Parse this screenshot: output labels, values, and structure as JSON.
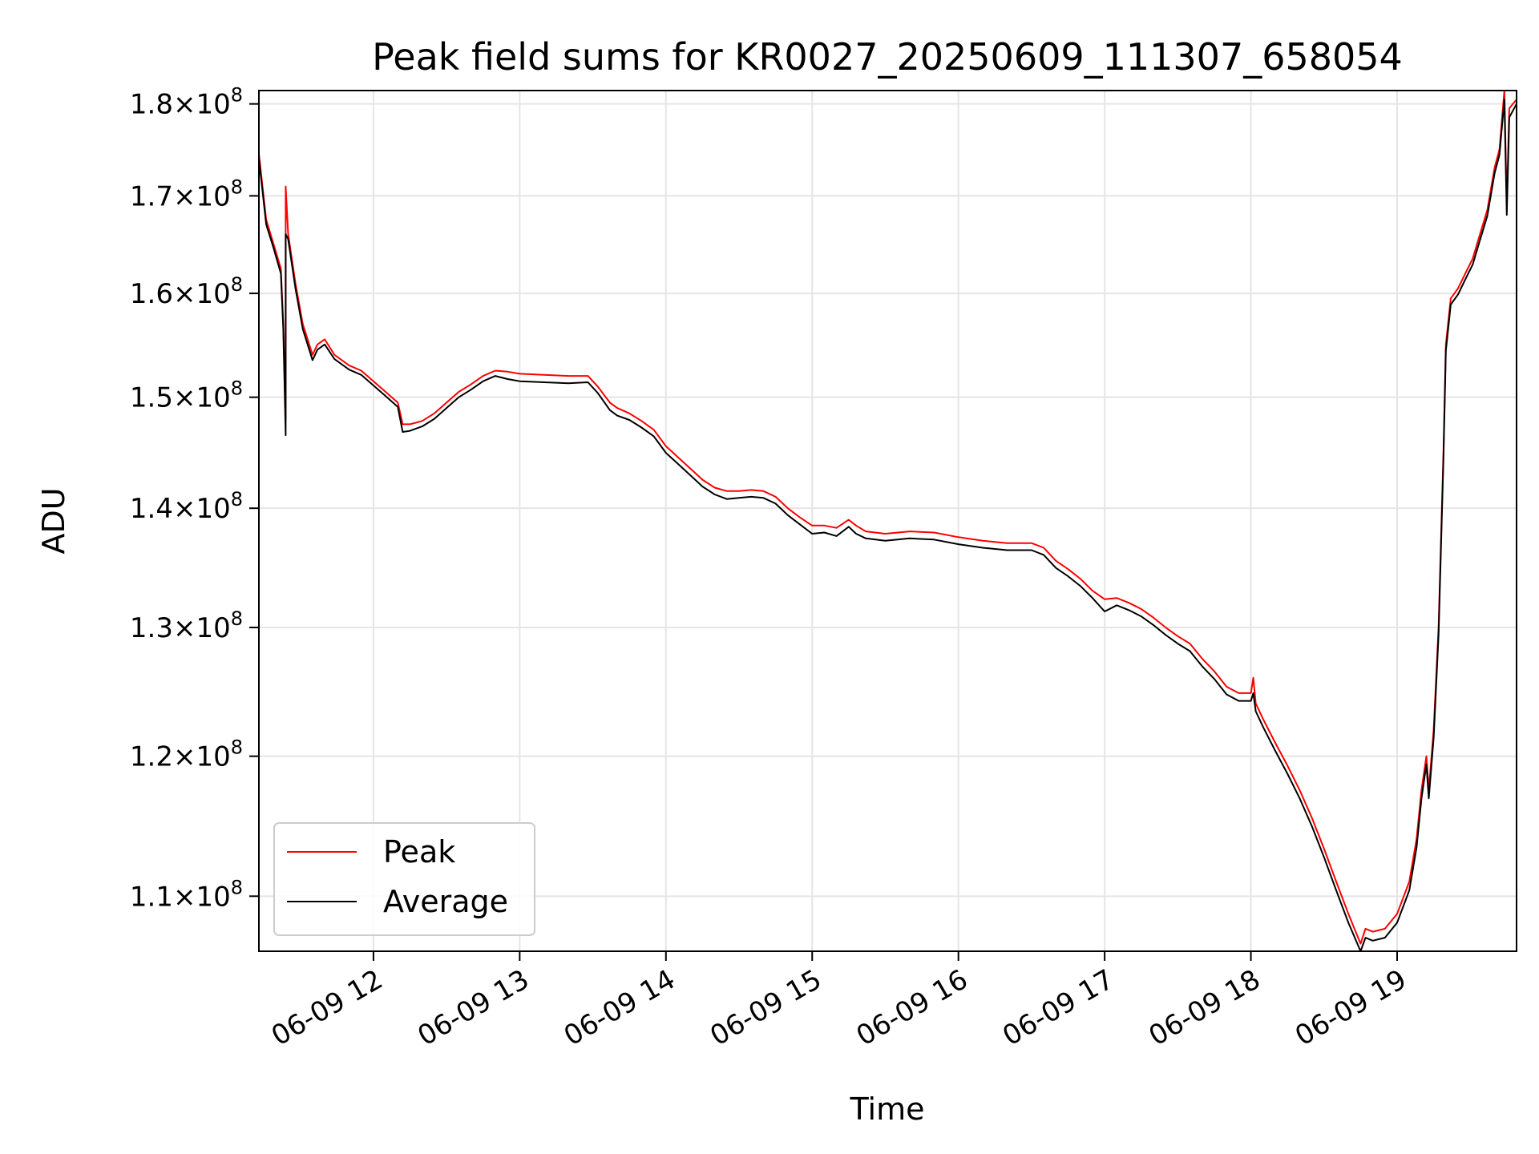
{
  "chart_data": {
    "type": "line",
    "title": "Peak field sums for KR0027_20250609_111307_658054",
    "xlabel": "Time",
    "ylabel": "ADU",
    "y_scale": "log",
    "grid": true,
    "legend_position": "lower-left",
    "xlim": [
      "2025-06-09 11:13",
      "2025-06-09 19:49"
    ],
    "ylim": [
      106300000,
      181500000
    ],
    "x_ticks": [
      {
        "t": "2025-06-09 12:00",
        "label": "06-09 12"
      },
      {
        "t": "2025-06-09 13:00",
        "label": "06-09 13"
      },
      {
        "t": "2025-06-09 14:00",
        "label": "06-09 14"
      },
      {
        "t": "2025-06-09 15:00",
        "label": "06-09 15"
      },
      {
        "t": "2025-06-09 16:00",
        "label": "06-09 16"
      },
      {
        "t": "2025-06-09 17:00",
        "label": "06-09 17"
      },
      {
        "t": "2025-06-09 18:00",
        "label": "06-09 18"
      },
      {
        "t": "2025-06-09 19:00",
        "label": "06-09 19"
      }
    ],
    "y_ticks": [
      {
        "v": 110000000,
        "mant": "1.1",
        "exp": "8"
      },
      {
        "v": 120000000,
        "mant": "1.2",
        "exp": "8"
      },
      {
        "v": 130000000,
        "mant": "1.3",
        "exp": "8"
      },
      {
        "v": 140000000,
        "mant": "1.4",
        "exp": "8"
      },
      {
        "v": 150000000,
        "mant": "1.5",
        "exp": "8"
      },
      {
        "v": 160000000,
        "mant": "1.6",
        "exp": "8"
      },
      {
        "v": 170000000,
        "mant": "1.7",
        "exp": "8"
      },
      {
        "v": 180000000,
        "mant": "1.8",
        "exp": "8"
      }
    ],
    "series": [
      {
        "name": "Peak",
        "color": "#ff0000",
        "points": [
          [
            "2025-06-09 11:13",
            174.5
          ],
          [
            "2025-06-09 11:16",
            167.5
          ],
          [
            "2025-06-09 11:19",
            165.0
          ],
          [
            "2025-06-09 11:22",
            162.5
          ],
          [
            "2025-06-09 11:23",
            157.0
          ],
          [
            "2025-06-09 11:24",
            148.0
          ],
          [
            "2025-06-09 11:24",
            171.0
          ],
          [
            "2025-06-09 11:25",
            166.0
          ],
          [
            "2025-06-09 11:28",
            161.0
          ],
          [
            "2025-06-09 11:31",
            157.0
          ],
          [
            "2025-06-09 11:35",
            154.0
          ],
          [
            "2025-06-09 11:37",
            155.0
          ],
          [
            "2025-06-09 11:40",
            155.5
          ],
          [
            "2025-06-09 11:44",
            154.0
          ],
          [
            "2025-06-09 11:50",
            153.0
          ],
          [
            "2025-06-09 11:55",
            152.5
          ],
          [
            "2025-06-09 12:00",
            151.5
          ],
          [
            "2025-06-09 12:05",
            150.5
          ],
          [
            "2025-06-09 12:10",
            149.5
          ],
          [
            "2025-06-09 12:12",
            147.5
          ],
          [
            "2025-06-09 12:15",
            147.5
          ],
          [
            "2025-06-09 12:20",
            147.8
          ],
          [
            "2025-06-09 12:25",
            148.5
          ],
          [
            "2025-06-09 12:30",
            149.5
          ],
          [
            "2025-06-09 12:35",
            150.5
          ],
          [
            "2025-06-09 12:40",
            151.2
          ],
          [
            "2025-06-09 12:45",
            152.0
          ],
          [
            "2025-06-09 12:50",
            152.5
          ],
          [
            "2025-06-09 12:55",
            152.4
          ],
          [
            "2025-06-09 13:00",
            152.2
          ],
          [
            "2025-06-09 13:10",
            152.1
          ],
          [
            "2025-06-09 13:20",
            152.0
          ],
          [
            "2025-06-09 13:28",
            152.0
          ],
          [
            "2025-06-09 13:32",
            151.0
          ],
          [
            "2025-06-09 13:37",
            149.5
          ],
          [
            "2025-06-09 13:40",
            149.0
          ],
          [
            "2025-06-09 13:45",
            148.5
          ],
          [
            "2025-06-09 13:50",
            147.8
          ],
          [
            "2025-06-09 13:55",
            147.0
          ],
          [
            "2025-06-09 14:00",
            145.5
          ],
          [
            "2025-06-09 14:05",
            144.5
          ],
          [
            "2025-06-09 14:10",
            143.5
          ],
          [
            "2025-06-09 14:15",
            142.5
          ],
          [
            "2025-06-09 14:20",
            141.8
          ],
          [
            "2025-06-09 14:25",
            141.5
          ],
          [
            "2025-06-09 14:30",
            141.5
          ],
          [
            "2025-06-09 14:35",
            141.6
          ],
          [
            "2025-06-09 14:40",
            141.5
          ],
          [
            "2025-06-09 14:45",
            141.0
          ],
          [
            "2025-06-09 14:50",
            140.0
          ],
          [
            "2025-06-09 14:55",
            139.2
          ],
          [
            "2025-06-09 15:00",
            138.5
          ],
          [
            "2025-06-09 15:05",
            138.5
          ],
          [
            "2025-06-09 15:10",
            138.3
          ],
          [
            "2025-06-09 15:15",
            139.0
          ],
          [
            "2025-06-09 15:18",
            138.5
          ],
          [
            "2025-06-09 15:22",
            138.0
          ],
          [
            "2025-06-09 15:30",
            137.8
          ],
          [
            "2025-06-09 15:40",
            138.0
          ],
          [
            "2025-06-09 15:50",
            137.9
          ],
          [
            "2025-06-09 16:00",
            137.5
          ],
          [
            "2025-06-09 16:10",
            137.2
          ],
          [
            "2025-06-09 16:20",
            137.0
          ],
          [
            "2025-06-09 16:30",
            137.0
          ],
          [
            "2025-06-09 16:35",
            136.6
          ],
          [
            "2025-06-09 16:40",
            135.5
          ],
          [
            "2025-06-09 16:45",
            134.8
          ],
          [
            "2025-06-09 16:50",
            134.0
          ],
          [
            "2025-06-09 16:55",
            133.0
          ],
          [
            "2025-06-09 17:00",
            132.3
          ],
          [
            "2025-06-09 17:05",
            132.4
          ],
          [
            "2025-06-09 17:10",
            132.0
          ],
          [
            "2025-06-09 17:15",
            131.5
          ],
          [
            "2025-06-09 17:20",
            130.8
          ],
          [
            "2025-06-09 17:25",
            130.0
          ],
          [
            "2025-06-09 17:30",
            129.3
          ],
          [
            "2025-06-09 17:35",
            128.7
          ],
          [
            "2025-06-09 17:40",
            127.5
          ],
          [
            "2025-06-09 17:45",
            126.5
          ],
          [
            "2025-06-09 17:50",
            125.3
          ],
          [
            "2025-06-09 17:55",
            124.8
          ],
          [
            "2025-06-09 18:00",
            124.8
          ],
          [
            "2025-06-09 18:01",
            126.0
          ],
          [
            "2025-06-09 18:02",
            124.0
          ],
          [
            "2025-06-09 18:05",
            122.8
          ],
          [
            "2025-06-09 18:10",
            121.0
          ],
          [
            "2025-06-09 18:15",
            119.3
          ],
          [
            "2025-06-09 18:20",
            117.5
          ],
          [
            "2025-06-09 18:25",
            115.5
          ],
          [
            "2025-06-09 18:30",
            113.3
          ],
          [
            "2025-06-09 18:35",
            111.0
          ],
          [
            "2025-06-09 18:40",
            108.8
          ],
          [
            "2025-06-09 18:45",
            106.8
          ],
          [
            "2025-06-09 18:47",
            107.8
          ],
          [
            "2025-06-09 18:50",
            107.6
          ],
          [
            "2025-06-09 18:55",
            107.8
          ],
          [
            "2025-06-09 19:00",
            108.8
          ],
          [
            "2025-06-09 19:05",
            111.0
          ],
          [
            "2025-06-09 19:08",
            114.0
          ],
          [
            "2025-06-09 19:10",
            117.5
          ],
          [
            "2025-06-09 19:12",
            120.0
          ],
          [
            "2025-06-09 19:13",
            117.5
          ],
          [
            "2025-06-09 19:15",
            122.0
          ],
          [
            "2025-06-09 19:17",
            130.0
          ],
          [
            "2025-06-09 19:19",
            145.0
          ],
          [
            "2025-06-09 19:20",
            155.0
          ],
          [
            "2025-06-09 19:22",
            159.5
          ],
          [
            "2025-06-09 19:25",
            160.5
          ],
          [
            "2025-06-09 19:28",
            162.0
          ],
          [
            "2025-06-09 19:31",
            163.5
          ],
          [
            "2025-06-09 19:34",
            166.0
          ],
          [
            "2025-06-09 19:37",
            168.5
          ],
          [
            "2025-06-09 19:40",
            173.0
          ],
          [
            "2025-06-09 19:42",
            175.0
          ],
          [
            "2025-06-09 19:44",
            181.5
          ],
          [
            "2025-06-09 19:45",
            169.0
          ],
          [
            "2025-06-09 19:46",
            179.5
          ],
          [
            "2025-06-09 19:49",
            180.5
          ]
        ]
      },
      {
        "name": "Average",
        "color": "#000000",
        "points": [
          [
            "2025-06-09 11:13",
            174.0
          ],
          [
            "2025-06-09 11:16",
            167.0
          ],
          [
            "2025-06-09 11:19",
            164.6
          ],
          [
            "2025-06-09 11:22",
            162.0
          ],
          [
            "2025-06-09 11:23",
            156.5
          ],
          [
            "2025-06-09 11:24",
            146.5
          ],
          [
            "2025-06-09 11:24",
            166.0
          ],
          [
            "2025-06-09 11:25",
            165.5
          ],
          [
            "2025-06-09 11:28",
            160.5
          ],
          [
            "2025-06-09 11:31",
            156.5
          ],
          [
            "2025-06-09 11:35",
            153.5
          ],
          [
            "2025-06-09 11:37",
            154.5
          ],
          [
            "2025-06-09 11:40",
            155.0
          ],
          [
            "2025-06-09 11:44",
            153.6
          ],
          [
            "2025-06-09 11:50",
            152.6
          ],
          [
            "2025-06-09 11:55",
            152.1
          ],
          [
            "2025-06-09 12:00",
            151.1
          ],
          [
            "2025-06-09 12:05",
            150.1
          ],
          [
            "2025-06-09 12:10",
            149.1
          ],
          [
            "2025-06-09 12:12",
            146.8
          ],
          [
            "2025-06-09 12:15",
            146.9
          ],
          [
            "2025-06-09 12:20",
            147.3
          ],
          [
            "2025-06-09 12:25",
            148.0
          ],
          [
            "2025-06-09 12:30",
            149.0
          ],
          [
            "2025-06-09 12:35",
            150.0
          ],
          [
            "2025-06-09 12:40",
            150.7
          ],
          [
            "2025-06-09 12:45",
            151.5
          ],
          [
            "2025-06-09 12:50",
            152.0
          ],
          [
            "2025-06-09 12:55",
            151.7
          ],
          [
            "2025-06-09 13:00",
            151.5
          ],
          [
            "2025-06-09 13:10",
            151.4
          ],
          [
            "2025-06-09 13:20",
            151.3
          ],
          [
            "2025-06-09 13:28",
            151.4
          ],
          [
            "2025-06-09 13:32",
            150.4
          ],
          [
            "2025-06-09 13:37",
            148.8
          ],
          [
            "2025-06-09 13:40",
            148.3
          ],
          [
            "2025-06-09 13:45",
            147.9
          ],
          [
            "2025-06-09 13:50",
            147.2
          ],
          [
            "2025-06-09 13:55",
            146.4
          ],
          [
            "2025-06-09 14:00",
            144.9
          ],
          [
            "2025-06-09 14:05",
            143.9
          ],
          [
            "2025-06-09 14:10",
            142.9
          ],
          [
            "2025-06-09 14:15",
            141.9
          ],
          [
            "2025-06-09 14:20",
            141.2
          ],
          [
            "2025-06-09 14:25",
            140.8
          ],
          [
            "2025-06-09 14:30",
            140.9
          ],
          [
            "2025-06-09 14:35",
            141.0
          ],
          [
            "2025-06-09 14:40",
            140.9
          ],
          [
            "2025-06-09 14:45",
            140.4
          ],
          [
            "2025-06-09 14:50",
            139.4
          ],
          [
            "2025-06-09 14:55",
            138.6
          ],
          [
            "2025-06-09 15:00",
            137.8
          ],
          [
            "2025-06-09 15:05",
            137.9
          ],
          [
            "2025-06-09 15:10",
            137.6
          ],
          [
            "2025-06-09 15:15",
            138.4
          ],
          [
            "2025-06-09 15:18",
            137.8
          ],
          [
            "2025-06-09 15:22",
            137.4
          ],
          [
            "2025-06-09 15:30",
            137.2
          ],
          [
            "2025-06-09 15:40",
            137.4
          ],
          [
            "2025-06-09 15:50",
            137.3
          ],
          [
            "2025-06-09 16:00",
            136.9
          ],
          [
            "2025-06-09 16:10",
            136.6
          ],
          [
            "2025-06-09 16:20",
            136.4
          ],
          [
            "2025-06-09 16:30",
            136.4
          ],
          [
            "2025-06-09 16:35",
            136.0
          ],
          [
            "2025-06-09 16:40",
            134.9
          ],
          [
            "2025-06-09 16:45",
            134.2
          ],
          [
            "2025-06-09 16:50",
            133.4
          ],
          [
            "2025-06-09 16:55",
            132.4
          ],
          [
            "2025-06-09 17:00",
            131.3
          ],
          [
            "2025-06-09 17:05",
            131.8
          ],
          [
            "2025-06-09 17:10",
            131.4
          ],
          [
            "2025-06-09 17:15",
            130.9
          ],
          [
            "2025-06-09 17:20",
            130.2
          ],
          [
            "2025-06-09 17:25",
            129.4
          ],
          [
            "2025-06-09 17:30",
            128.7
          ],
          [
            "2025-06-09 17:35",
            128.1
          ],
          [
            "2025-06-09 17:40",
            126.9
          ],
          [
            "2025-06-09 17:45",
            125.9
          ],
          [
            "2025-06-09 17:50",
            124.7
          ],
          [
            "2025-06-09 17:55",
            124.2
          ],
          [
            "2025-06-09 18:00",
            124.2
          ],
          [
            "2025-06-09 18:01",
            124.8
          ],
          [
            "2025-06-09 18:02",
            123.4
          ],
          [
            "2025-06-09 18:05",
            122.2
          ],
          [
            "2025-06-09 18:10",
            120.4
          ],
          [
            "2025-06-09 18:15",
            118.7
          ],
          [
            "2025-06-09 18:20",
            116.9
          ],
          [
            "2025-06-09 18:25",
            114.9
          ],
          [
            "2025-06-09 18:30",
            112.7
          ],
          [
            "2025-06-09 18:35",
            110.4
          ],
          [
            "2025-06-09 18:40",
            108.2
          ],
          [
            "2025-06-09 18:45",
            106.3
          ],
          [
            "2025-06-09 18:47",
            107.2
          ],
          [
            "2025-06-09 18:50",
            107.0
          ],
          [
            "2025-06-09 18:55",
            107.2
          ],
          [
            "2025-06-09 19:00",
            108.2
          ],
          [
            "2025-06-09 19:05",
            110.4
          ],
          [
            "2025-06-09 19:08",
            113.4
          ],
          [
            "2025-06-09 19:10",
            116.9
          ],
          [
            "2025-06-09 19:12",
            119.4
          ],
          [
            "2025-06-09 19:13",
            116.9
          ],
          [
            "2025-06-09 19:15",
            121.4
          ],
          [
            "2025-06-09 19:17",
            129.4
          ],
          [
            "2025-06-09 19:19",
            144.4
          ],
          [
            "2025-06-09 19:20",
            154.4
          ],
          [
            "2025-06-09 19:22",
            158.9
          ],
          [
            "2025-06-09 19:25",
            159.9
          ],
          [
            "2025-06-09 19:28",
            161.4
          ],
          [
            "2025-06-09 19:31",
            162.9
          ],
          [
            "2025-06-09 19:34",
            165.4
          ],
          [
            "2025-06-09 19:37",
            167.9
          ],
          [
            "2025-06-09 19:40",
            172.4
          ],
          [
            "2025-06-09 19:42",
            174.4
          ],
          [
            "2025-06-09 19:44",
            180.5
          ],
          [
            "2025-06-09 19:45",
            168.0
          ],
          [
            "2025-06-09 19:46",
            178.5
          ],
          [
            "2025-06-09 19:49",
            180.0
          ]
        ]
      }
    ]
  }
}
